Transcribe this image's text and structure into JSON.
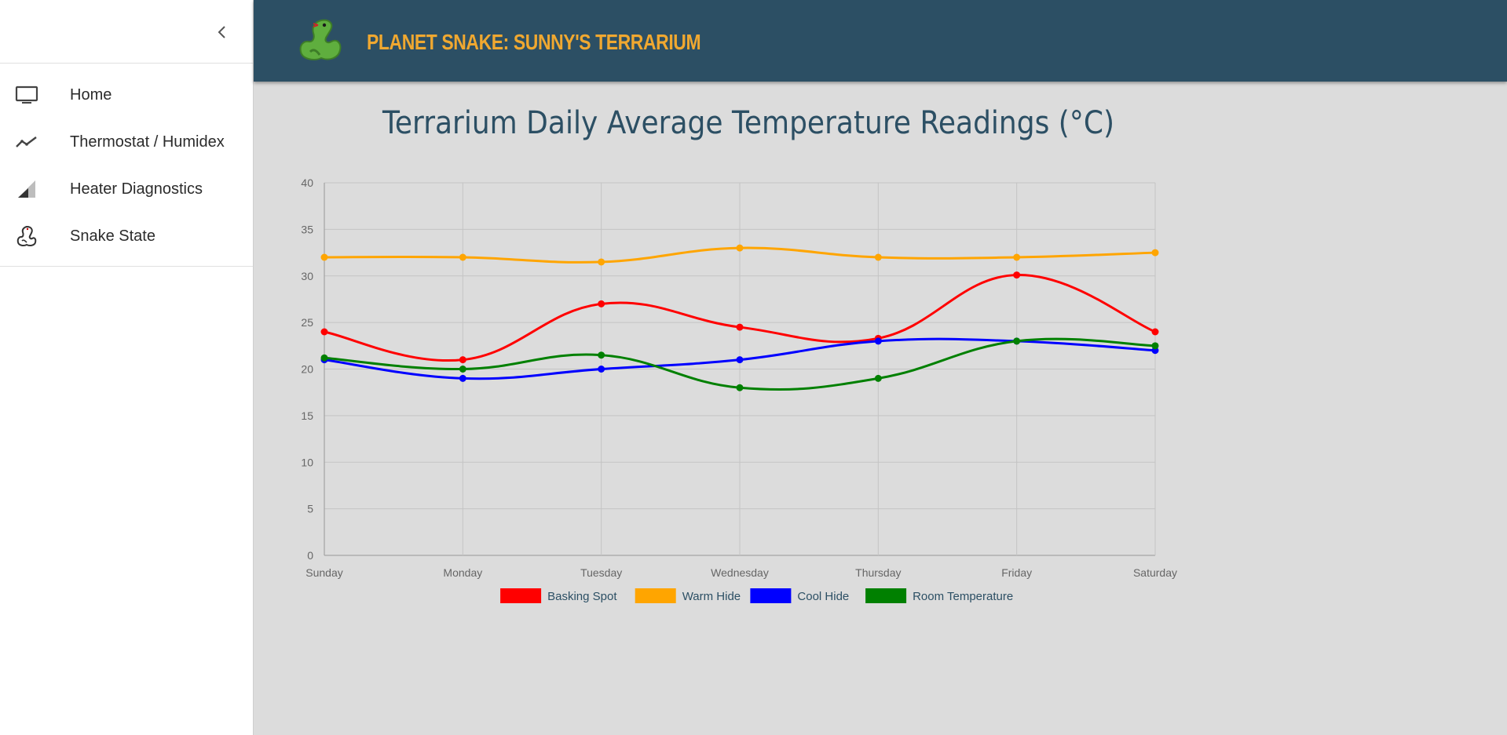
{
  "sidebar": {
    "items": [
      {
        "label": "Home",
        "icon": "monitor-icon"
      },
      {
        "label": "Thermostat / Humidex",
        "icon": "trend-line-icon"
      },
      {
        "label": "Heater Diagnostics",
        "icon": "signal-triangle-icon"
      },
      {
        "label": "Snake State",
        "icon": "snake-icon"
      }
    ]
  },
  "header": {
    "title": "PLANET SNAKE: SUNNY'S TERRARIUM"
  },
  "colors": {
    "header_bg": "#2c4f64",
    "title_accent": "#f0a830",
    "basking": "#ff0000",
    "warm": "#ffa500",
    "cool": "#0000ff",
    "room": "#008000"
  },
  "chart_data": {
    "type": "line",
    "title": "Terrarium Daily Average Temperature Readings (°C)",
    "categories": [
      "Sunday",
      "Monday",
      "Tuesday",
      "Wednesday",
      "Thursday",
      "Friday",
      "Saturday"
    ],
    "ylim": [
      0,
      40
    ],
    "yticks": [
      "0",
      "5",
      "10",
      "15",
      "20",
      "25",
      "30",
      "35",
      "40"
    ],
    "grid": true,
    "legend": "bottom",
    "series": [
      {
        "name": "Basking Spot",
        "color": "#ff0000",
        "values": [
          24,
          21,
          27,
          24.5,
          23.3,
          30.1,
          24
        ]
      },
      {
        "name": "Warm Hide",
        "color": "#ffa500",
        "values": [
          32,
          32,
          31.5,
          33,
          32,
          32,
          32.5
        ]
      },
      {
        "name": "Cool Hide",
        "color": "#0000ff",
        "values": [
          21,
          19,
          20,
          21,
          23,
          23,
          22
        ]
      },
      {
        "name": "Room Temperature",
        "color": "#008000",
        "values": [
          21.2,
          20,
          21.5,
          18,
          19,
          23,
          22.5
        ]
      }
    ]
  }
}
